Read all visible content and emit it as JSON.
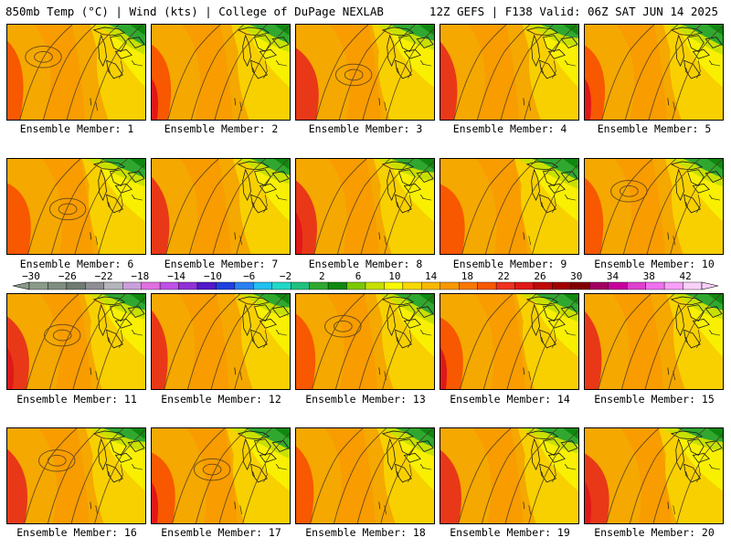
{
  "header": {
    "left": "850mb Temp (°C) | Wind (kts) | College of DuPage NEXLAB",
    "right": "12Z GEFS | F138 Valid: 06Z SAT JUN 14 2025"
  },
  "panels": [
    {
      "label": "Ensemble Member: 1"
    },
    {
      "label": "Ensemble Member: 2"
    },
    {
      "label": "Ensemble Member: 3"
    },
    {
      "label": "Ensemble Member: 4"
    },
    {
      "label": "Ensemble Member: 5"
    },
    {
      "label": "Ensemble Member: 6"
    },
    {
      "label": "Ensemble Member: 7"
    },
    {
      "label": "Ensemble Member: 8"
    },
    {
      "label": "Ensemble Member: 9"
    },
    {
      "label": "Ensemble Member: 10"
    },
    {
      "label": "Ensemble Member: 11"
    },
    {
      "label": "Ensemble Member: 12"
    },
    {
      "label": "Ensemble Member: 13"
    },
    {
      "label": "Ensemble Member: 14"
    },
    {
      "label": "Ensemble Member: 15"
    },
    {
      "label": "Ensemble Member: 16"
    },
    {
      "label": "Ensemble Member: 17"
    },
    {
      "label": "Ensemble Member: 18"
    },
    {
      "label": "Ensemble Member: 19"
    },
    {
      "label": "Ensemble Member: 20"
    }
  ],
  "colorbar": {
    "tick_labels": [
      "-30",
      "-26",
      "-22",
      "-18",
      "-14",
      "-10",
      "-6",
      "-2",
      "2",
      "6",
      "10",
      "14",
      "18",
      "22",
      "26",
      "30",
      "34",
      "38",
      "42"
    ],
    "colors": [
      "#8a9a8a",
      "#7f8c80",
      "#6f7b72",
      "#8e8e94",
      "#b4b4bc",
      "#c9a0dc",
      "#e070e0",
      "#c050e8",
      "#9030d8",
      "#5018c8",
      "#2040e0",
      "#2a80f0",
      "#20c0f0",
      "#20d8c8",
      "#20c080",
      "#30a830",
      "#108810",
      "#7cc800",
      "#c8e000",
      "#f8f800",
      "#f8d800",
      "#f8b800",
      "#f89800",
      "#f87800",
      "#f85800",
      "#f03020",
      "#e01818",
      "#c00808",
      "#a00000",
      "#800000",
      "#a00060",
      "#c8009c",
      "#e040d0",
      "#f070f0",
      "#f8a0f8",
      "#f8d0f8"
    ]
  }
}
